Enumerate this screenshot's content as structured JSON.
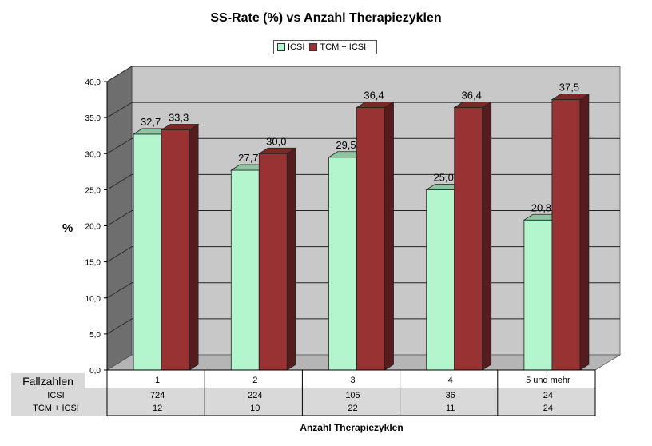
{
  "chart_data": {
    "type": "bar",
    "title": "SS-Rate (%) vs Anzahl Therapiezyklen",
    "ylabel": "%",
    "xlabel": "Anzahl Therapiezyklen",
    "ylim": [
      0,
      40
    ],
    "yticks": [
      "0,0",
      "5,0",
      "10,0",
      "15,0",
      "20,0",
      "25,0",
      "30,0",
      "35,0",
      "40,0"
    ],
    "ytick_values": [
      0,
      5,
      10,
      15,
      20,
      25,
      30,
      35,
      40
    ],
    "categories": [
      "1",
      "2",
      "3",
      "4",
      "5 und mehr"
    ],
    "series": [
      {
        "name": "ICSI",
        "values": [
          32.7,
          27.7,
          29.5,
          25.0,
          20.8
        ],
        "labels": [
          "32,7",
          "27,7",
          "29,5",
          "25,0",
          "20,8"
        ],
        "color": "#b3f5cc"
      },
      {
        "name": "TCM + ICSI",
        "values": [
          33.3,
          30.0,
          36.4,
          36.4,
          37.5
        ],
        "labels": [
          "33,3",
          "30,0",
          "36,4",
          "36,4",
          "37,5"
        ],
        "color": "#993333"
      }
    ],
    "grid": true,
    "legend_position": "top-center",
    "table": {
      "header_label": "Fallzahlen",
      "rows": [
        {
          "label": "ICSI",
          "values": [
            "724",
            "224",
            "105",
            "36",
            "24"
          ]
        },
        {
          "label": "TCM + ICSI",
          "values": [
            "12",
            "10",
            "22",
            "11",
            "24"
          ]
        }
      ]
    }
  }
}
